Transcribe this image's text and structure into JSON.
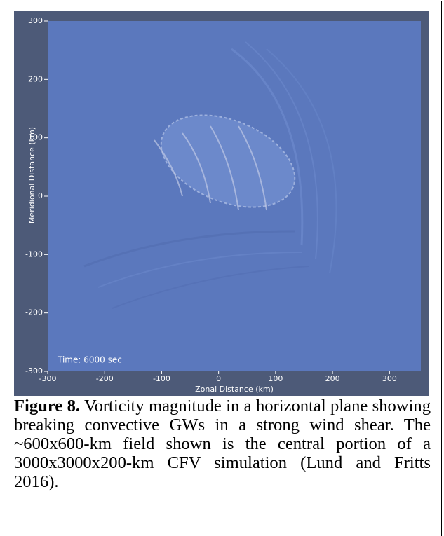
{
  "chart_data": {
    "type": "field",
    "annotation": "Time: 6000 sec",
    "x_label": "Zonal Distance (km)",
    "y_label": "Meridional Distance (km)",
    "xlim": [
      -300,
      355
    ],
    "ylim": [
      -300,
      300
    ],
    "xticks": [
      -300,
      -200,
      -100,
      0,
      100,
      200,
      300
    ],
    "yticks": [
      -300,
      -200,
      -100,
      0,
      100,
      200,
      300
    ],
    "color": "#5b78bd"
  },
  "caption": {
    "label": "Figure 8.",
    "text": "Vorticity magnitude in a horizontal plane showing breaking convective GWs in a strong wind shear. The ~600x600-km field shown is the central portion of a 3000x3000x200-km CFV simulation (Lund and Fritts 2016)."
  }
}
